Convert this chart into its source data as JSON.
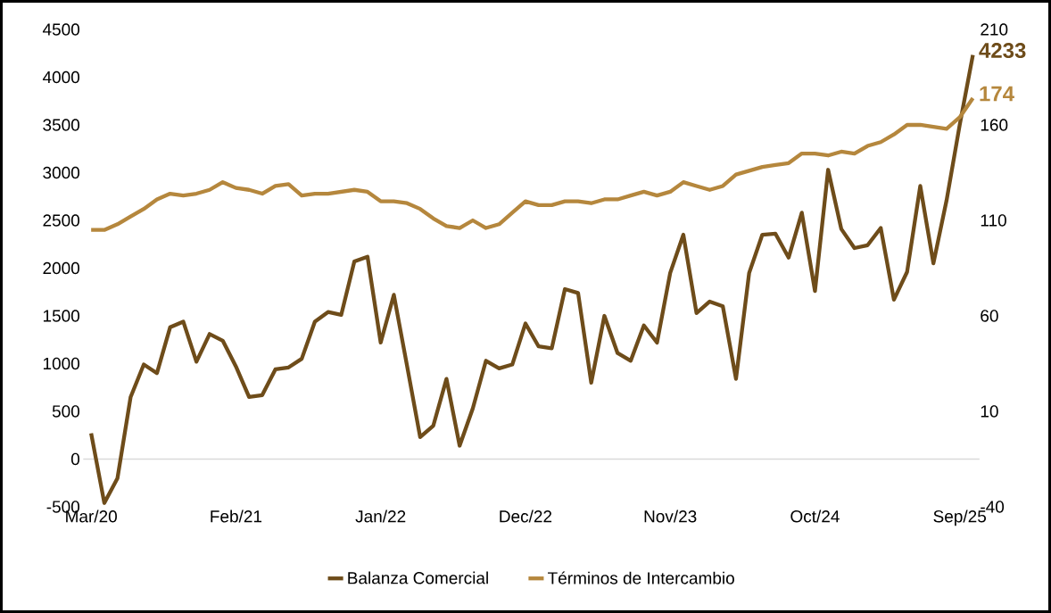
{
  "chart_data": {
    "type": "line",
    "categories": [
      "Mar/20",
      null,
      null,
      null,
      null,
      null,
      null,
      null,
      null,
      null,
      null,
      "Feb/21",
      null,
      null,
      null,
      null,
      null,
      null,
      null,
      null,
      null,
      null,
      "Jan/22",
      null,
      null,
      null,
      null,
      null,
      null,
      null,
      null,
      null,
      null,
      "Dec/22",
      null,
      null,
      null,
      null,
      null,
      null,
      null,
      null,
      null,
      null,
      "Nov/23",
      null,
      null,
      null,
      null,
      null,
      null,
      null,
      null,
      null,
      null,
      "Oct/24",
      null,
      null,
      null,
      null,
      null,
      null,
      null,
      null,
      null,
      null,
      "Sep/25",
      null
    ],
    "series": [
      {
        "name": "Balanza Comercial",
        "color": "#6e4c1a",
        "values": [
          270,
          -460,
          -200,
          650,
          990,
          900,
          1380,
          1440,
          1020,
          1310,
          1240,
          970,
          650,
          670,
          940,
          960,
          1050,
          1440,
          1540,
          1510,
          2070,
          2120,
          1220,
          1720,
          980,
          230,
          350,
          840,
          140,
          530,
          1030,
          950,
          990,
          1420,
          1180,
          1160,
          1780,
          1740,
          800,
          1500,
          1110,
          1030,
          1400,
          1220,
          1950,
          2350,
          1530,
          1650,
          1600,
          840,
          1950,
          2350,
          2360,
          2110,
          2580,
          1760,
          3030,
          2410,
          2210,
          2240,
          2420,
          1670,
          1960,
          2860,
          2050,
          2710,
          3500,
          4233
        ],
        "value_labels": [
          null,
          null,
          null,
          null,
          null,
          null,
          null,
          null,
          null,
          null,
          null,
          null,
          null,
          null,
          null,
          null,
          null,
          null,
          null,
          null,
          null,
          null,
          null,
          null,
          null,
          null,
          null,
          null,
          null,
          null,
          null,
          null,
          null,
          null,
          null,
          null,
          null,
          null,
          null,
          null,
          null,
          null,
          null,
          null,
          null,
          null,
          null,
          null,
          null,
          null,
          null,
          null,
          null,
          null,
          null,
          null,
          null,
          null,
          null,
          null,
          null,
          null,
          null,
          null,
          null,
          null,
          null,
          "4233"
        ]
      },
      {
        "name": "Términos de Intercambio",
        "color": "#b5873d",
        "axis": "y2",
        "values": [
          105,
          105,
          108,
          112,
          116,
          121,
          124,
          123,
          124,
          126,
          130,
          127,
          126,
          124,
          128,
          129,
          123,
          124,
          124,
          125,
          126,
          125,
          120,
          120,
          119,
          116,
          111,
          107,
          106,
          110,
          106,
          108,
          114,
          120,
          118,
          118,
          120,
          120,
          119,
          121,
          121,
          123,
          125,
          123,
          125,
          130,
          128,
          126,
          128,
          134,
          136,
          138,
          139,
          140,
          145,
          145,
          144,
          146,
          145,
          149,
          151,
          155,
          160,
          160,
          159,
          158,
          164,
          174
        ],
        "value_labels": [
          null,
          null,
          null,
          null,
          null,
          null,
          null,
          null,
          null,
          null,
          null,
          null,
          null,
          null,
          null,
          null,
          null,
          null,
          null,
          null,
          null,
          null,
          null,
          null,
          null,
          null,
          null,
          null,
          null,
          null,
          null,
          null,
          null,
          null,
          null,
          null,
          null,
          null,
          null,
          null,
          null,
          null,
          null,
          null,
          null,
          null,
          null,
          null,
          null,
          null,
          null,
          null,
          null,
          null,
          null,
          null,
          null,
          null,
          null,
          null,
          null,
          null,
          null,
          null,
          null,
          null,
          null,
          "174"
        ]
      }
    ],
    "ylim": [
      -500,
      4500
    ],
    "yticks": [
      -500,
      0,
      500,
      1000,
      1500,
      2000,
      2500,
      3000,
      3500,
      4000,
      4500
    ],
    "y2lim": [
      -40,
      210
    ],
    "y2ticks": [
      -40,
      10,
      60,
      110,
      160,
      210
    ],
    "ref_lines": [
      {
        "axis": "y",
        "value": 0,
        "color": "#d9d9d9"
      }
    ],
    "legend": "bottom",
    "grid": false,
    "marker": "none",
    "line_style": "solid"
  }
}
